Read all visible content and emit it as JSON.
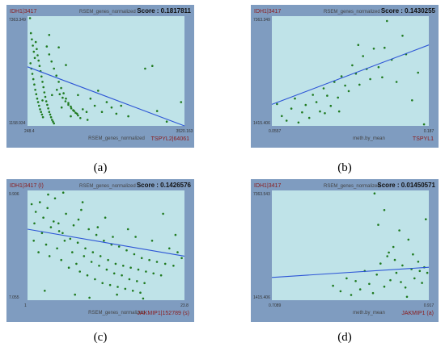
{
  "captions": [
    "(a)",
    "(b)",
    "(c)",
    "(d)"
  ],
  "colors": {
    "frame": "#7f9cc0",
    "plot_bg": "#bfe3e8",
    "dot": "#1f7a1f",
    "line": "#2d55d6",
    "gene": "#8b1a1a"
  },
  "chart_data": [
    {
      "type": "scatter",
      "y_gene": "IDH1|3417",
      "header": "RSEM_genes_normalized",
      "score": "Score : 0.1817811",
      "xlabel": "RSEM_genes_normalized",
      "x_gene": "TSPYL2|64061",
      "y_ticks": [
        "7363.349",
        "1158.934"
      ],
      "x_ticks": [
        "248.4",
        "3520.163"
      ],
      "xlim": [
        248.4,
        3520.163
      ],
      "ylim": [
        1158.934,
        7363.349
      ],
      "trend": [
        [
          248.4,
          4500
        ],
        [
          3520.163,
          1160
        ]
      ],
      "points": [
        [
          300,
          7250
        ],
        [
          320,
          6400
        ],
        [
          340,
          6050
        ],
        [
          360,
          5700
        ],
        [
          380,
          5350
        ],
        [
          400,
          5000
        ],
        [
          310,
          4700
        ],
        [
          330,
          4400
        ],
        [
          350,
          4100
        ],
        [
          370,
          3800
        ],
        [
          390,
          3500
        ],
        [
          410,
          3200
        ],
        [
          430,
          2950
        ],
        [
          450,
          2700
        ],
        [
          470,
          2500
        ],
        [
          490,
          2300
        ],
        [
          510,
          2100
        ],
        [
          530,
          1950
        ],
        [
          550,
          1800
        ],
        [
          570,
          1650
        ],
        [
          420,
          5900
        ],
        [
          440,
          5500
        ],
        [
          460,
          5150
        ],
        [
          480,
          4850
        ],
        [
          500,
          4550
        ],
        [
          520,
          4250
        ],
        [
          540,
          3950
        ],
        [
          560,
          3650
        ],
        [
          580,
          3350
        ],
        [
          600,
          3050
        ],
        [
          620,
          2800
        ],
        [
          640,
          2550
        ],
        [
          660,
          2350
        ],
        [
          680,
          2150
        ],
        [
          700,
          1950
        ],
        [
          720,
          1800
        ],
        [
          740,
          1650
        ],
        [
          760,
          1500
        ],
        [
          780,
          1400
        ],
        [
          800,
          1300
        ],
        [
          650,
          5650
        ],
        [
          700,
          5200
        ],
        [
          750,
          4800
        ],
        [
          800,
          4400
        ],
        [
          850,
          4000
        ],
        [
          900,
          3650
        ],
        [
          950,
          3300
        ],
        [
          1000,
          3000
        ],
        [
          1050,
          2700
        ],
        [
          1100,
          2450
        ],
        [
          1150,
          2250
        ],
        [
          1200,
          2050
        ],
        [
          1250,
          1900
        ],
        [
          1300,
          1750
        ],
        [
          1350,
          1600
        ],
        [
          860,
          3200
        ],
        [
          920,
          2950
        ],
        [
          980,
          2750
        ],
        [
          1040,
          2550
        ],
        [
          1100,
          2350
        ],
        [
          1160,
          2150
        ],
        [
          1220,
          2000
        ],
        [
          1280,
          1850
        ],
        [
          1400,
          2100
        ],
        [
          1480,
          1950
        ],
        [
          1560,
          2700
        ],
        [
          1650,
          2300
        ],
        [
          1720,
          3150
        ],
        [
          1800,
          1950
        ],
        [
          1900,
          2500
        ],
        [
          2000,
          2200
        ],
        [
          2100,
          1850
        ],
        [
          2200,
          2300
        ],
        [
          2350,
          1700
        ],
        [
          2700,
          4400
        ],
        [
          2850,
          4550
        ],
        [
          2950,
          2000
        ],
        [
          3150,
          1400
        ],
        [
          3450,
          2500
        ],
        [
          700,
          6300
        ],
        [
          900,
          5600
        ],
        [
          1050,
          4600
        ],
        [
          1300,
          2900
        ],
        [
          560,
          2600
        ],
        [
          760,
          2900
        ],
        [
          960,
          2200
        ],
        [
          1150,
          1700
        ],
        [
          1500,
          1500
        ]
      ]
    },
    {
      "type": "scatter",
      "y_gene": "IDH1|3417",
      "header": "RSEM_genes_normalized",
      "score": "Score : 0.1430255",
      "xlabel": "meth.by_mean",
      "x_gene": "TSPYL1",
      "y_ticks": [
        "7363.349",
        "1415.406"
      ],
      "x_ticks": [
        "0.0557",
        "0.187"
      ],
      "xlim": [
        0.0557,
        0.187
      ],
      "ylim": [
        1415.406,
        7363.349
      ],
      "trend": [
        [
          0.0557,
          2580
        ],
        [
          0.187,
          5800
        ]
      ],
      "points": [
        [
          0.06,
          2600
        ],
        [
          0.064,
          1950
        ],
        [
          0.068,
          1700
        ],
        [
          0.072,
          2350
        ],
        [
          0.075,
          2900
        ],
        [
          0.078,
          1600
        ],
        [
          0.081,
          2150
        ],
        [
          0.084,
          2550
        ],
        [
          0.087,
          1850
        ],
        [
          0.09,
          3100
        ],
        [
          0.093,
          2700
        ],
        [
          0.096,
          2200
        ],
        [
          0.099,
          3450
        ],
        [
          0.102,
          3050
        ],
        [
          0.105,
          2500
        ],
        [
          0.108,
          3800
        ],
        [
          0.111,
          2950
        ],
        [
          0.114,
          4100
        ],
        [
          0.117,
          3600
        ],
        [
          0.12,
          3300
        ],
        [
          0.123,
          4700
        ],
        [
          0.126,
          4250
        ],
        [
          0.129,
          3650
        ],
        [
          0.132,
          5200
        ],
        [
          0.135,
          4500
        ],
        [
          0.138,
          3950
        ],
        [
          0.141,
          5600
        ],
        [
          0.145,
          4600
        ],
        [
          0.148,
          4050
        ],
        [
          0.152,
          7100
        ],
        [
          0.156,
          5000
        ],
        [
          0.16,
          3800
        ],
        [
          0.165,
          6300
        ],
        [
          0.168,
          5300
        ],
        [
          0.173,
          2800
        ],
        [
          0.178,
          4300
        ],
        [
          0.183,
          1500
        ],
        [
          0.15,
          5650
        ],
        [
          0.128,
          5800
        ],
        [
          0.112,
          2200
        ],
        [
          0.1,
          2100
        ]
      ]
    },
    {
      "type": "scatter",
      "y_gene": "IDH1|3417 (I)",
      "header": "RSEM_genes_normalized",
      "score": "Score : 0.1426576",
      "xlabel": "RSEM_genes_normalized",
      "x_gene": "JAKMIP1|152789 (s)",
      "y_ticks": [
        "9.906",
        "7.055"
      ],
      "x_ticks": [
        "1",
        "23.8"
      ],
      "xlim": [
        1,
        23.8
      ],
      "ylim": [
        7.055,
        9.906
      ],
      "trend": [
        [
          1,
          8.9
        ],
        [
          23.8,
          8.2
        ]
      ],
      "points": [
        [
          1.6,
          9.55
        ],
        [
          2.2,
          9.35
        ],
        [
          2.8,
          9.6
        ],
        [
          3.3,
          9.2
        ],
        [
          3.9,
          9.45
        ],
        [
          4.4,
          8.95
        ],
        [
          5.0,
          9.7
        ],
        [
          5.5,
          9.05
        ],
        [
          6.1,
          8.8
        ],
        [
          6.6,
          9.3
        ],
        [
          7.2,
          8.65
        ],
        [
          7.7,
          9.0
        ],
        [
          8.3,
          8.55
        ],
        [
          8.8,
          9.4
        ],
        [
          9.4,
          8.4
        ],
        [
          9.9,
          8.9
        ],
        [
          10.5,
          8.3
        ],
        [
          11.0,
          8.75
        ],
        [
          11.6,
          8.2
        ],
        [
          12.1,
          8.6
        ],
        [
          12.7,
          8.1
        ],
        [
          13.2,
          8.5
        ],
        [
          13.8,
          8.0
        ],
        [
          14.3,
          8.45
        ],
        [
          14.9,
          7.95
        ],
        [
          15.4,
          8.35
        ],
        [
          16.0,
          7.9
        ],
        [
          16.5,
          8.25
        ],
        [
          17.1,
          7.85
        ],
        [
          17.6,
          8.15
        ],
        [
          18.2,
          7.8
        ],
        [
          18.7,
          8.1
        ],
        [
          19.3,
          7.75
        ],
        [
          19.8,
          8.05
        ],
        [
          20.4,
          7.7
        ],
        [
          21.0,
          8.0
        ],
        [
          21.6,
          8.4
        ],
        [
          22.2,
          7.95
        ],
        [
          22.8,
          8.3
        ],
        [
          23.4,
          8.15
        ],
        [
          1.9,
          8.6
        ],
        [
          2.6,
          8.3
        ],
        [
          3.1,
          8.8
        ],
        [
          3.7,
          8.5
        ],
        [
          4.2,
          8.2
        ],
        [
          4.8,
          9.1
        ],
        [
          5.3,
          8.4
        ],
        [
          5.9,
          8.1
        ],
        [
          6.4,
          8.6
        ],
        [
          7.0,
          7.9
        ],
        [
          7.5,
          8.3
        ],
        [
          8.1,
          8.0
        ],
        [
          8.6,
          7.8
        ],
        [
          9.2,
          8.2
        ],
        [
          9.7,
          7.7
        ],
        [
          10.3,
          8.05
        ],
        [
          10.8,
          7.6
        ],
        [
          11.4,
          7.95
        ],
        [
          11.9,
          7.5
        ],
        [
          12.5,
          7.85
        ],
        [
          13.0,
          7.45
        ],
        [
          13.6,
          7.75
        ],
        [
          14.1,
          7.4
        ],
        [
          14.7,
          7.7
        ],
        [
          15.2,
          7.35
        ],
        [
          15.8,
          7.6
        ],
        [
          16.3,
          7.3
        ],
        [
          16.9,
          7.55
        ],
        [
          17.4,
          7.25
        ],
        [
          18.0,
          7.5
        ],
        [
          6.2,
          9.85
        ],
        [
          9.0,
          9.6
        ],
        [
          12.3,
          9.2
        ],
        [
          15.6,
          8.9
        ],
        [
          19.1,
          8.6
        ],
        [
          20.7,
          9.3
        ],
        [
          22.5,
          8.75
        ],
        [
          10.0,
          7.12
        ],
        [
          14.0,
          7.2
        ],
        [
          17.8,
          7.1
        ],
        [
          3.5,
          7.3
        ],
        [
          7.9,
          7.2
        ],
        [
          4.0,
          9.8
        ],
        [
          2.0,
          9.05
        ],
        [
          5.6,
          8.85
        ],
        [
          8.4,
          9.15
        ],
        [
          11.2,
          8.95
        ],
        [
          13.4,
          8.7
        ],
        [
          16.7,
          8.7
        ]
      ]
    },
    {
      "type": "scatter",
      "y_gene": "IDH1|3417",
      "header": "RSEM_genes_normalized",
      "score": "Score : 0.01450571",
      "xlabel": "meth.by_mean",
      "x_gene": "JAKMIP1 (a)",
      "y_ticks": [
        "7363.543",
        "1415.406"
      ],
      "x_ticks": [
        "0.7089",
        "0.917"
      ],
      "xlim": [
        0.7089,
        0.917
      ],
      "ylim": [
        1415.406,
        7363.543
      ],
      "trend": [
        [
          0.7089,
          2650
        ],
        [
          0.917,
          3200
        ]
      ],
      "points": [
        [
          0.79,
          2200
        ],
        [
          0.8,
          1900
        ],
        [
          0.808,
          2600
        ],
        [
          0.814,
          1700
        ],
        [
          0.82,
          2450
        ],
        [
          0.826,
          2000
        ],
        [
          0.832,
          3000
        ],
        [
          0.838,
          2300
        ],
        [
          0.843,
          1800
        ],
        [
          0.848,
          2800
        ],
        [
          0.853,
          3400
        ],
        [
          0.858,
          2150
        ],
        [
          0.862,
          3800
        ],
        [
          0.866,
          2500
        ],
        [
          0.87,
          4300
        ],
        [
          0.874,
          2900
        ],
        [
          0.878,
          5200
        ],
        [
          0.882,
          3300
        ],
        [
          0.886,
          2100
        ],
        [
          0.89,
          4700
        ],
        [
          0.894,
          3100
        ],
        [
          0.898,
          2600
        ],
        [
          0.903,
          3500
        ],
        [
          0.908,
          2350
        ],
        [
          0.913,
          5800
        ],
        [
          0.915,
          2900
        ],
        [
          0.845,
          7200
        ],
        [
          0.85,
          5500
        ],
        [
          0.858,
          6300
        ],
        [
          0.864,
          4000
        ],
        [
          0.872,
          3600
        ],
        [
          0.88,
          2400
        ],
        [
          0.888,
          1600
        ],
        [
          0.896,
          3900
        ],
        [
          0.905,
          3000
        ],
        [
          0.911,
          3200
        ]
      ]
    }
  ]
}
